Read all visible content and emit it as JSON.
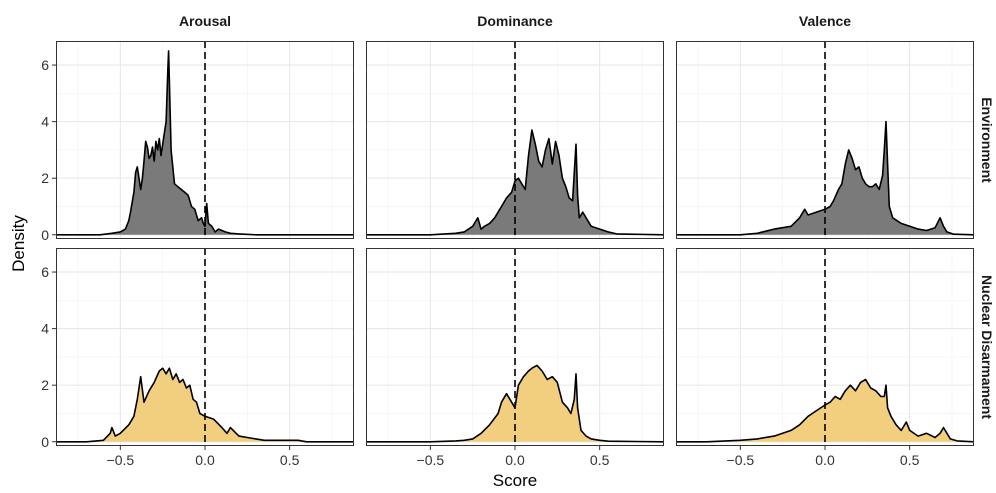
{
  "chart_data": {
    "type": "area",
    "xlabel": "Score",
    "ylabel": "Density",
    "xlim": [
      -0.88,
      0.88
    ],
    "ylim": [
      -0.15,
      6.85
    ],
    "x_ticks": [
      -0.5,
      0.0,
      0.5
    ],
    "x_tick_labels": [
      "−0.5",
      "0.0",
      "0.5"
    ],
    "y_ticks": [
      0,
      2,
      4,
      6
    ],
    "y_tick_labels": [
      "0",
      "2",
      "4",
      "6"
    ],
    "grid": true,
    "reference_line_x": 0,
    "columns": [
      "Arousal",
      "Dominance",
      "Valence"
    ],
    "rows": [
      "Environment",
      "Nuclear Disarmament"
    ],
    "row_colors": [
      "#7a7a7a",
      "#f2cf7e"
    ],
    "series": [
      {
        "column": "Arousal",
        "row": "Environment",
        "x": [
          -0.88,
          -0.62,
          -0.55,
          -0.5,
          -0.47,
          -0.45,
          -0.44,
          -0.42,
          -0.41,
          -0.4,
          -0.38,
          -0.37,
          -0.36,
          -0.35,
          -0.34,
          -0.33,
          -0.32,
          -0.31,
          -0.3,
          -0.29,
          -0.28,
          -0.27,
          -0.26,
          -0.25,
          -0.24,
          -0.23,
          -0.22,
          -0.215,
          -0.21,
          -0.2,
          -0.19,
          -0.18,
          -0.16,
          -0.14,
          -0.12,
          -0.1,
          -0.08,
          -0.06,
          -0.04,
          -0.02,
          -0.01,
          0.0,
          0.01,
          0.02,
          0.04,
          0.06,
          0.08,
          0.1,
          0.12,
          0.15,
          0.2,
          0.3,
          0.88
        ],
        "y": [
          0,
          0,
          0.05,
          0.1,
          0.2,
          0.5,
          0.8,
          1.5,
          2.2,
          2.4,
          1.6,
          2.0,
          2.6,
          3.3,
          3.1,
          2.7,
          2.8,
          3.1,
          2.6,
          3.3,
          3.0,
          3.4,
          2.8,
          3.2,
          3.6,
          4.0,
          5.8,
          6.5,
          5.4,
          3.0,
          2.4,
          1.8,
          1.7,
          1.6,
          1.5,
          1.4,
          1.0,
          0.9,
          0.5,
          0.6,
          0.4,
          0.3,
          1.1,
          0.4,
          0.3,
          0.1,
          0.2,
          0.15,
          0.1,
          0.05,
          0.03,
          0,
          0
        ]
      },
      {
        "column": "Dominance",
        "row": "Environment",
        "x": [
          -0.88,
          -0.5,
          -0.35,
          -0.3,
          -0.25,
          -0.22,
          -0.2,
          -0.18,
          -0.15,
          -0.12,
          -0.1,
          -0.08,
          -0.05,
          -0.02,
          0.0,
          0.02,
          0.04,
          0.06,
          0.08,
          0.1,
          0.12,
          0.14,
          0.16,
          0.18,
          0.2,
          0.22,
          0.24,
          0.26,
          0.28,
          0.3,
          0.32,
          0.34,
          0.36,
          0.37,
          0.38,
          0.4,
          0.42,
          0.45,
          0.5,
          0.55,
          0.6,
          0.88
        ],
        "y": [
          0,
          0,
          0.05,
          0.1,
          0.3,
          0.6,
          0.2,
          0.3,
          0.4,
          0.6,
          0.8,
          1.0,
          1.3,
          1.5,
          1.9,
          2.0,
          1.8,
          1.6,
          2.8,
          3.7,
          3.2,
          2.6,
          2.4,
          3.0,
          3.4,
          2.5,
          3.3,
          2.8,
          2.0,
          1.7,
          1.3,
          1.2,
          3.2,
          1.4,
          0.6,
          0.8,
          0.6,
          0.3,
          0.2,
          0.1,
          0.03,
          0
        ]
      },
      {
        "column": "Valence",
        "row": "Environment",
        "x": [
          -0.88,
          -0.5,
          -0.4,
          -0.3,
          -0.2,
          -0.15,
          -0.12,
          -0.1,
          -0.05,
          0.0,
          0.03,
          0.05,
          0.08,
          0.1,
          0.12,
          0.14,
          0.16,
          0.18,
          0.2,
          0.22,
          0.24,
          0.26,
          0.28,
          0.3,
          0.32,
          0.34,
          0.35,
          0.36,
          0.37,
          0.38,
          0.4,
          0.45,
          0.5,
          0.55,
          0.6,
          0.65,
          0.68,
          0.7,
          0.72,
          0.76,
          0.88
        ],
        "y": [
          0,
          0,
          0.05,
          0.2,
          0.3,
          0.6,
          0.9,
          0.7,
          0.8,
          0.9,
          1.0,
          1.2,
          1.6,
          1.8,
          2.5,
          3.0,
          2.7,
          2.3,
          2.4,
          2.0,
          1.8,
          1.7,
          1.7,
          1.8,
          1.6,
          2.1,
          3.0,
          4.0,
          2.5,
          1.0,
          0.6,
          0.4,
          0.3,
          0.2,
          0.15,
          0.25,
          0.6,
          0.3,
          0.1,
          0.02,
          0
        ]
      },
      {
        "column": "Arousal",
        "row": "Nuclear Disarmament",
        "x": [
          -0.88,
          -0.7,
          -0.6,
          -0.56,
          -0.55,
          -0.53,
          -0.5,
          -0.45,
          -0.42,
          -0.4,
          -0.38,
          -0.36,
          -0.33,
          -0.3,
          -0.27,
          -0.25,
          -0.23,
          -0.21,
          -0.19,
          -0.17,
          -0.15,
          -0.13,
          -0.11,
          -0.09,
          -0.07,
          -0.05,
          -0.03,
          0.0,
          0.05,
          0.1,
          0.13,
          0.15,
          0.2,
          0.25,
          0.3,
          0.35,
          0.45,
          0.55,
          0.6,
          0.88
        ],
        "y": [
          0,
          0,
          0.05,
          0.3,
          0.5,
          0.2,
          0.3,
          0.6,
          0.9,
          1.5,
          2.3,
          1.4,
          1.8,
          2.1,
          2.5,
          2.6,
          2.4,
          2.6,
          2.2,
          2.4,
          2.1,
          2.2,
          1.9,
          2.0,
          1.5,
          1.4,
          1.0,
          0.9,
          0.8,
          0.5,
          0.3,
          0.5,
          0.2,
          0.15,
          0.1,
          0.05,
          0.05,
          0.05,
          0,
          0
        ]
      },
      {
        "column": "Dominance",
        "row": "Nuclear Disarmament",
        "x": [
          -0.88,
          -0.5,
          -0.35,
          -0.3,
          -0.25,
          -0.2,
          -0.15,
          -0.1,
          -0.08,
          -0.05,
          -0.03,
          0.0,
          0.02,
          0.05,
          0.08,
          0.1,
          0.13,
          0.16,
          0.19,
          0.22,
          0.25,
          0.28,
          0.31,
          0.33,
          0.35,
          0.36,
          0.37,
          0.39,
          0.42,
          0.45,
          0.5,
          0.55,
          0.88
        ],
        "y": [
          0,
          0,
          0.03,
          0.05,
          0.1,
          0.3,
          0.6,
          1.0,
          1.4,
          1.7,
          1.5,
          1.2,
          2.0,
          2.3,
          2.5,
          2.6,
          2.7,
          2.5,
          2.2,
          2.3,
          2.1,
          1.4,
          1.2,
          1.0,
          1.5,
          2.4,
          1.2,
          0.4,
          0.2,
          0.1,
          0.05,
          0.02,
          0
        ]
      },
      {
        "column": "Valence",
        "row": "Nuclear Disarmament",
        "x": [
          -0.88,
          -0.7,
          -0.5,
          -0.4,
          -0.3,
          -0.2,
          -0.15,
          -0.1,
          -0.05,
          0.0,
          0.03,
          0.06,
          0.09,
          0.12,
          0.15,
          0.18,
          0.21,
          0.24,
          0.27,
          0.3,
          0.33,
          0.35,
          0.36,
          0.37,
          0.39,
          0.42,
          0.45,
          0.48,
          0.5,
          0.55,
          0.6,
          0.65,
          0.68,
          0.7,
          0.74,
          0.78,
          0.88
        ],
        "y": [
          0,
          0,
          0.05,
          0.1,
          0.2,
          0.4,
          0.6,
          0.9,
          1.1,
          1.3,
          1.4,
          1.6,
          1.5,
          1.8,
          2.0,
          1.8,
          2.1,
          2.2,
          1.9,
          1.8,
          1.6,
          1.6,
          2.0,
          1.2,
          0.9,
          0.6,
          0.4,
          0.7,
          0.4,
          0.2,
          0.3,
          0.15,
          0.3,
          0.5,
          0.1,
          0.03,
          0
        ]
      }
    ]
  }
}
